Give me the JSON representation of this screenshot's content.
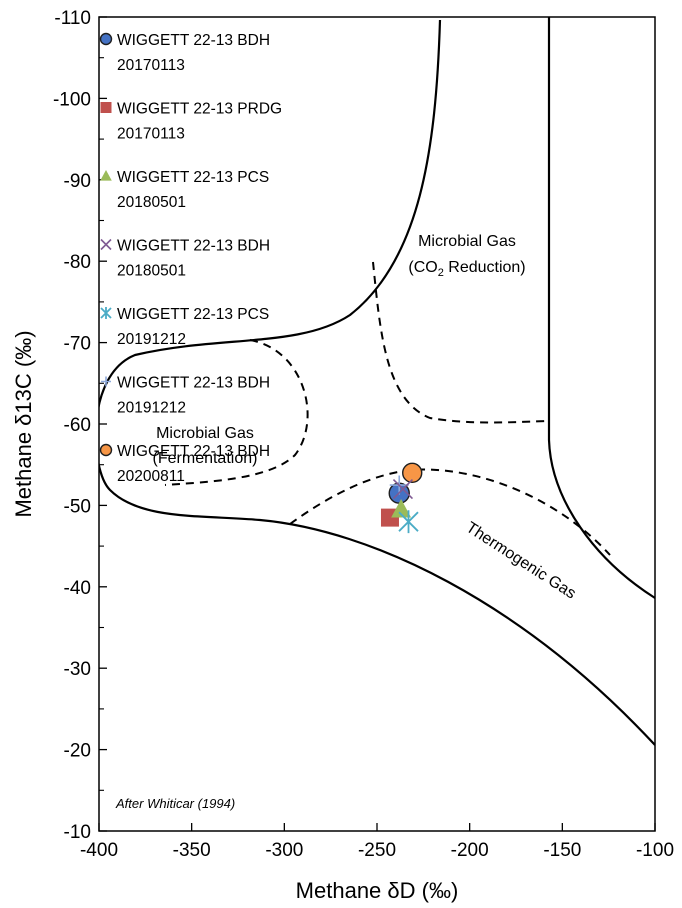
{
  "chart_data": {
    "type": "scatter",
    "xlabel": "Methane δD (‰)",
    "ylabel": "Methane δ13C (‰)",
    "xlim": [
      -400,
      -100
    ],
    "ylim": [
      -110,
      -10
    ],
    "y_axis_reversed": true,
    "x_ticks": [
      "-400",
      "-350",
      "-300",
      "-250",
      "-200",
      "-150",
      "-100"
    ],
    "y_ticks": [
      "-110",
      "-100",
      "-90",
      "-80",
      "-70",
      "-60",
      "-50",
      "-40",
      "-30",
      "-20",
      "-10"
    ],
    "grid": false,
    "legend_placement": "top-left",
    "series": [
      {
        "name": "WIGGETT 22-13 BDH 20170113",
        "marker": "circle",
        "color": "#4472C4",
        "x": -238,
        "y": -51.5
      },
      {
        "name": "WIGGETT 22-13 PRDG 20170113",
        "marker": "square",
        "color": "#C0504D",
        "x": -243,
        "y": -48.5
      },
      {
        "name": "WIGGETT 22-13 PCS 20180501",
        "marker": "triangle",
        "color": "#9BBB59",
        "x": -237,
        "y": -49.5
      },
      {
        "name": "WIGGETT 22-13 BDH 20180501",
        "marker": "x",
        "color": "#7F5A93",
        "x": -236,
        "y": -52
      },
      {
        "name": "WIGGETT 22-13 PCS 20191212",
        "marker": "star",
        "color": "#4BACC6",
        "x": -233,
        "y": -48
      },
      {
        "name": "WIGGETT 22-13 BDH 20191212",
        "marker": "plus",
        "color": "#8EA9DB",
        "x": -238,
        "y": -52.5
      },
      {
        "name": "WIGGETT 22-13 BDH 20200811",
        "marker": "circle",
        "color": "#F79646",
        "x": -231,
        "y": -54
      }
    ],
    "regions": [
      {
        "line1": "Microbial Gas",
        "line2": "(CO",
        "sub": "2",
        "line2_end": " Reduction)"
      },
      {
        "line1": "Microbial Gas",
        "line2": "(Fermentation)"
      },
      {
        "line1": "Thermogenic Gas"
      }
    ],
    "note": "After Whiticar (1994)"
  }
}
